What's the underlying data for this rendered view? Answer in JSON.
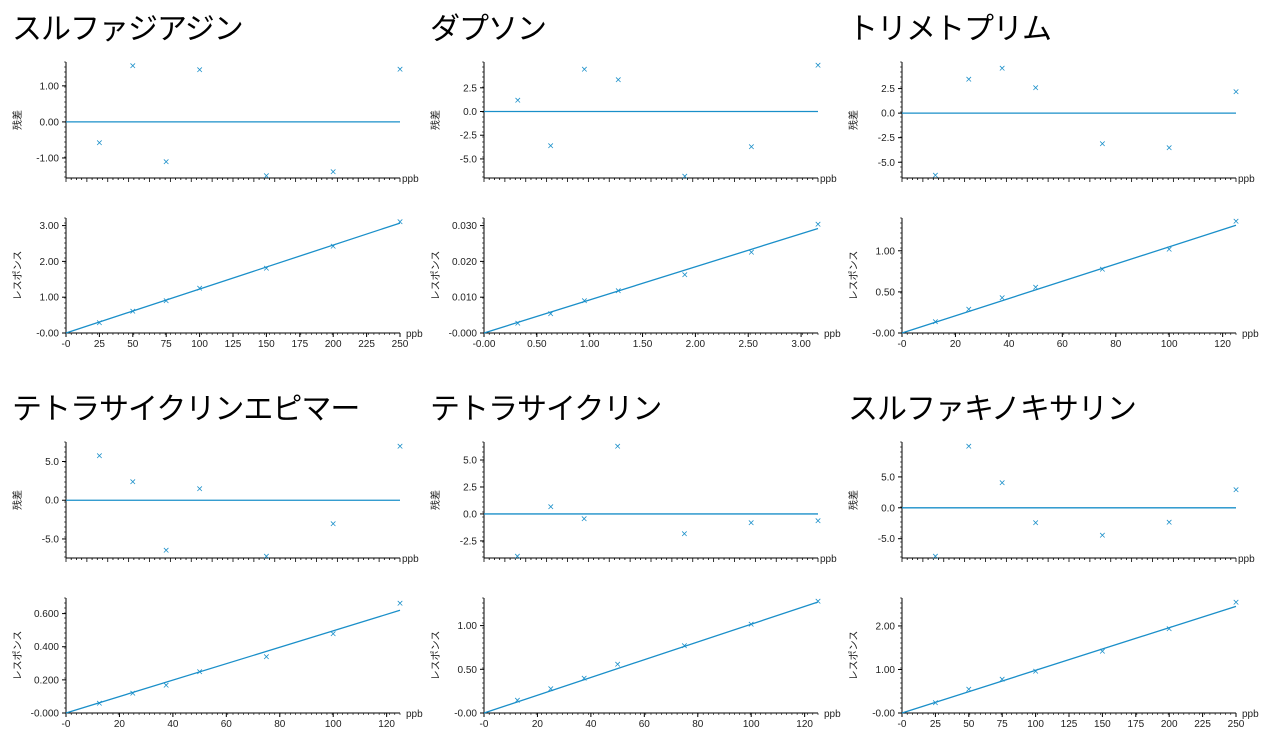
{
  "style": {
    "line_color": "#1a8fc9",
    "marker_color": "#1a8fc9",
    "axis_color": "#000000"
  },
  "labels": {
    "residual_ylabel": "残差",
    "response_ylabel": "レスポンス",
    "unit": "ppb"
  },
  "chart_data": [
    {
      "title": "スルファジアジン",
      "residual": {
        "type": "scatter",
        "ylim": [
          -1.5,
          1.55
        ],
        "yticks": [
          1.0,
          0.0,
          -1.0
        ],
        "yticklabels": [
          "1.00",
          "0.00",
          "-1.00"
        ],
        "x": [
          25,
          50,
          75,
          100,
          150,
          200,
          250
        ],
        "y": [
          -0.57,
          1.57,
          -1.1,
          1.45,
          -1.48,
          -1.38,
          1.47
        ]
      },
      "calibration": {
        "type": "scatter",
        "xlim": [
          0,
          250
        ],
        "ylim": [
          0,
          3.1
        ],
        "xticks": [
          0,
          25,
          50,
          75,
          100,
          125,
          150,
          175,
          200,
          225,
          250
        ],
        "xticklabels": [
          "-0",
          "25",
          "50",
          "75",
          "100",
          "125",
          "150",
          "175",
          "200",
          "225",
          "250"
        ],
        "yticks": [
          0,
          1,
          2,
          3
        ],
        "yticklabels": [
          "-0.00",
          "1.00",
          "2.00",
          "3.00"
        ],
        "x": [
          25,
          50,
          75,
          100,
          150,
          200,
          250
        ],
        "y": [
          0.3,
          0.62,
          0.91,
          1.25,
          1.82,
          2.43,
          3.12
        ],
        "fit": {
          "x": [
            0,
            250
          ],
          "y": [
            0.0,
            3.07
          ]
        }
      }
    },
    {
      "title": "ダプソン",
      "residual": {
        "type": "scatter",
        "ylim": [
          -6.8,
          4.8
        ],
        "yticks": [
          2.5,
          0.0,
          -2.5,
          -5.0
        ],
        "yticklabels": [
          "2.5",
          "0.0",
          "-2.5",
          "-5.0"
        ],
        "x": [
          0.32,
          0.63,
          0.95,
          1.27,
          1.9,
          2.53,
          3.16
        ],
        "y": [
          1.2,
          -3.6,
          4.5,
          3.4,
          -6.8,
          -3.7,
          4.9
        ]
      },
      "calibration": {
        "type": "scatter",
        "xlim": [
          0,
          3.16
        ],
        "ylim": [
          0,
          0.031
        ],
        "xticks": [
          0,
          0.5,
          1.0,
          1.5,
          2.0,
          2.5,
          3.0
        ],
        "xticklabels": [
          "-0.00",
          "0.50",
          "1.00",
          "1.50",
          "2.00",
          "2.50",
          "3.00"
        ],
        "yticks": [
          0,
          0.01,
          0.02,
          0.03
        ],
        "yticklabels": [
          "-0.000",
          "0.010",
          "0.020",
          "0.030"
        ],
        "x": [
          0.32,
          0.63,
          0.95,
          1.27,
          1.9,
          2.53,
          3.16
        ],
        "y": [
          0.0028,
          0.0055,
          0.0091,
          0.0119,
          0.0163,
          0.0226,
          0.0305
        ],
        "fit": {
          "x": [
            0,
            3.16
          ],
          "y": [
            0.0,
            0.0292
          ]
        }
      }
    },
    {
      "title": "トリメトプリム",
      "residual": {
        "type": "scatter",
        "ylim": [
          -6.4,
          4.8
        ],
        "yticks": [
          2.5,
          0.0,
          -2.5,
          -5.0
        ],
        "yticklabels": [
          "2.5",
          "0.0",
          "-2.5",
          "-5.0"
        ],
        "x": [
          12.5,
          25,
          37.5,
          50,
          75,
          100,
          125
        ],
        "y": [
          -6.3,
          3.5,
          4.6,
          2.6,
          -3.1,
          -3.5,
          2.2
        ]
      },
      "calibration": {
        "type": "scatter",
        "xlim": [
          0,
          125
        ],
        "ylim": [
          0,
          1.35
        ],
        "xticks": [
          0,
          20,
          40,
          60,
          80,
          100,
          120
        ],
        "xticklabels": [
          "-0",
          "20",
          "40",
          "60",
          "80",
          "100",
          "120"
        ],
        "yticks": [
          0,
          0.5,
          1.0
        ],
        "yticklabels": [
          "-0.00",
          "0.50",
          "1.00"
        ],
        "x": [
          12.5,
          25,
          37.5,
          50,
          75,
          100,
          125
        ],
        "y": [
          0.14,
          0.29,
          0.43,
          0.56,
          0.78,
          1.02,
          1.36
        ],
        "fit": {
          "x": [
            0,
            125
          ],
          "y": [
            0.0,
            1.31
          ]
        }
      }
    },
    {
      "title": "テトラサイクリンエピマー",
      "residual": {
        "type": "scatter",
        "ylim": [
          -7.2,
          7.0
        ],
        "yticks": [
          5.0,
          0.0,
          -5.0
        ],
        "yticklabels": [
          "5.0",
          "0.0",
          "-5.0"
        ],
        "x": [
          12.5,
          25,
          37.5,
          50,
          75,
          100,
          125
        ],
        "y": [
          5.8,
          2.4,
          -6.4,
          1.5,
          -7.2,
          -3.0,
          7.0
        ]
      },
      "calibration": {
        "type": "scatter",
        "xlim": [
          0,
          125
        ],
        "ylim": [
          0,
          0.67
        ],
        "xticks": [
          0,
          20,
          40,
          60,
          80,
          100,
          120
        ],
        "xticklabels": [
          "-0",
          "20",
          "40",
          "60",
          "80",
          "100",
          "120"
        ],
        "yticks": [
          0,
          0.2,
          0.4,
          0.6
        ],
        "yticklabels": [
          "-0.000",
          "0.200",
          "0.400",
          "0.600"
        ],
        "x": [
          12.5,
          25,
          37.5,
          50,
          75,
          100,
          125
        ],
        "y": [
          0.06,
          0.12,
          0.17,
          0.25,
          0.34,
          0.48,
          0.665
        ],
        "fit": {
          "x": [
            0,
            125
          ],
          "y": [
            0.0,
            0.62
          ]
        }
      }
    },
    {
      "title": "テトラサイクリン",
      "residual": {
        "type": "scatter",
        "ylim": [
          -3.9,
          6.3
        ],
        "yticks": [
          5.0,
          2.5,
          0.0,
          -2.5
        ],
        "yticklabels": [
          "5.0",
          "2.5",
          "0.0",
          "-2.5"
        ],
        "x": [
          12.5,
          25,
          37.5,
          50,
          75,
          100,
          125
        ],
        "y": [
          -3.9,
          0.7,
          -0.4,
          6.3,
          -1.8,
          -0.8,
          -0.6
        ]
      },
      "calibration": {
        "type": "scatter",
        "xlim": [
          0,
          125
        ],
        "ylim": [
          0,
          1.27
        ],
        "xticks": [
          0,
          20,
          40,
          60,
          80,
          100,
          120
        ],
        "xticklabels": [
          "-0",
          "20",
          "40",
          "60",
          "80",
          "100",
          "120"
        ],
        "yticks": [
          0,
          0.5,
          1.0
        ],
        "yticklabels": [
          "-0.00",
          "0.50",
          "1.00"
        ],
        "x": [
          12.5,
          25,
          37.5,
          50,
          75,
          100,
          125
        ],
        "y": [
          0.15,
          0.28,
          0.4,
          0.56,
          0.77,
          1.02,
          1.28
        ],
        "fit": {
          "x": [
            0,
            125
          ],
          "y": [
            0.0,
            1.27
          ]
        }
      }
    },
    {
      "title": "スルファキノキサリン",
      "residual": {
        "type": "scatter",
        "ylim": [
          -7.8,
          10.0
        ],
        "yticks": [
          5.0,
          0.0,
          -5.0
        ],
        "yticklabels": [
          "5.0",
          "0.0",
          "-5.0"
        ],
        "x": [
          25,
          50,
          75,
          100,
          150,
          200,
          250
        ],
        "y": [
          -7.8,
          10.0,
          4.1,
          -2.4,
          -4.4,
          -2.3,
          3.0
        ]
      },
      "calibration": {
        "type": "scatter",
        "xlim": [
          0,
          250
        ],
        "ylim": [
          0,
          2.55
        ],
        "xticks": [
          0,
          25,
          50,
          75,
          100,
          125,
          150,
          175,
          200,
          225,
          250
        ],
        "xticklabels": [
          "-0",
          "25",
          "50",
          "75",
          "100",
          "125",
          "150",
          "175",
          "200",
          "225",
          "250"
        ],
        "yticks": [
          0,
          1,
          2
        ],
        "yticklabels": [
          "-0.00",
          "1.00",
          "2.00"
        ],
        "x": [
          25,
          50,
          75,
          100,
          150,
          200,
          250
        ],
        "y": [
          0.24,
          0.55,
          0.78,
          0.97,
          1.43,
          1.94,
          2.55
        ],
        "fit": {
          "x": [
            0,
            250
          ],
          "y": [
            0.0,
            2.45
          ]
        }
      }
    }
  ]
}
